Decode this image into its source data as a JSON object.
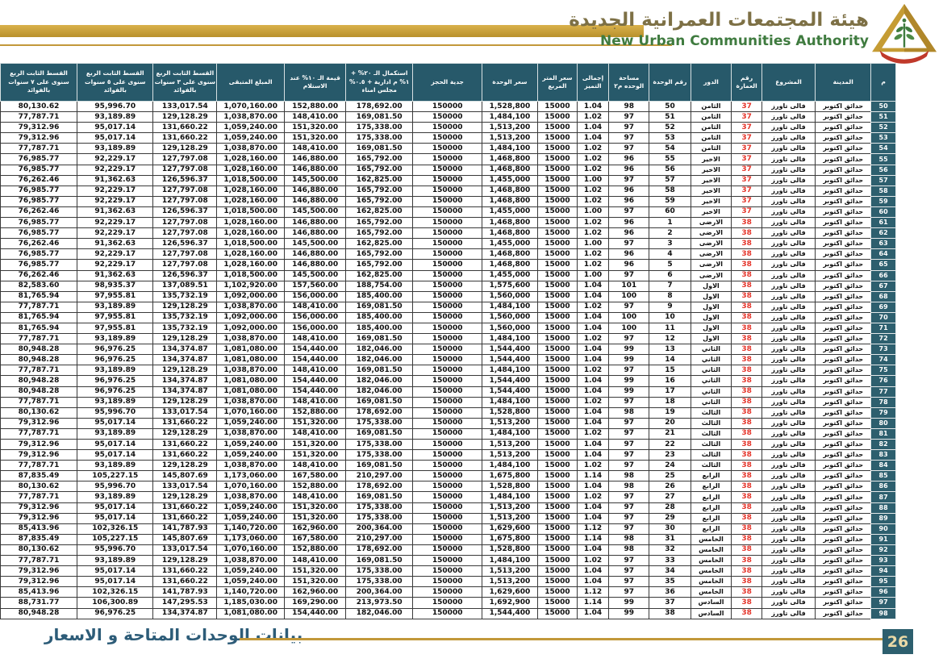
{
  "header": {
    "title_ar": "هيئة المجتمعات العمرانية الجديدة",
    "title_en": "New Urban Communities Authority",
    "logo_name": "nuca-logo"
  },
  "footer": {
    "caption": "بيانات الوحدات المتاحة و الاسعار",
    "page_number": "26"
  },
  "colors": {
    "gold_accent": "#C2983A",
    "header_teal": "#27596A",
    "serial_teal": "#2D5F6E",
    "building_red": "#E5352B",
    "footer_text": "#2D5C78",
    "page_number_text": "#EAD9A6",
    "title_green": "#3F7B3F",
    "title_gold": "#7D7045"
  },
  "table": {
    "columns": [
      {
        "key": "serial",
        "label": "م"
      },
      {
        "key": "city",
        "label": "المدينة"
      },
      {
        "key": "project",
        "label": "المشروع"
      },
      {
        "key": "building",
        "label": "رقم العمارة"
      },
      {
        "key": "floor",
        "label": "الدور"
      },
      {
        "key": "unit_number",
        "label": "رقم الوحدة"
      },
      {
        "key": "area",
        "label": "مساحة الوحده م٢"
      },
      {
        "key": "premium_total",
        "label": "إجمالى التميز"
      },
      {
        "key": "sqm_price",
        "label": "سعر المتر المربع"
      },
      {
        "key": "unit_price",
        "label": "سعر الوحدة"
      },
      {
        "key": "booking_deposit",
        "label": "جدية الحجز"
      },
      {
        "key": "completion_20",
        "label": "استكمال الـ ٢٠% + ١% م ادارية + ٠.٥% مجلس امناء"
      },
      {
        "key": "value_10_delivery",
        "label": "قيمة الـ ١٠% عند الاستلام"
      },
      {
        "key": "remaining",
        "label": "المبلغ المتبقى"
      },
      {
        "key": "inst_3y",
        "label": "القسط الثابت الربع سنوى على ٣ سنوات بالفوائد"
      },
      {
        "key": "inst_5y",
        "label": "القسط الثابت الربع سنوى على ٥ سنوات بالفوائد"
      },
      {
        "key": "inst_7y",
        "label": "القسط الثابت الربع سنوى على ٧ سنوات بالفوائد"
      }
    ],
    "rows": [
      [
        "50",
        "حدائق اكتوبر",
        "فالى تاورز",
        "37",
        "الثامن",
        "50",
        "98",
        "1.04",
        "15000",
        "1,528,800",
        "150000",
        "178,692.00",
        "152,880.00",
        "1,070,160.00",
        "133,017.54",
        "95,996.70",
        "80,130.62"
      ],
      [
        "51",
        "حدائق اكتوبر",
        "فالى تاورز",
        "37",
        "الثامن",
        "51",
        "97",
        "1.02",
        "15000",
        "1,484,100",
        "150000",
        "169,081.50",
        "148,410.00",
        "1,038,870.00",
        "129,128.29",
        "93,189.89",
        "77,787.71"
      ],
      [
        "52",
        "حدائق اكتوبر",
        "فالى تاورز",
        "37",
        "الثامن",
        "52",
        "97",
        "1.04",
        "15000",
        "1,513,200",
        "150000",
        "175,338.00",
        "151,320.00",
        "1,059,240.00",
        "131,660.22",
        "95,017.14",
        "79,312.96"
      ],
      [
        "53",
        "حدائق اكتوبر",
        "فالى تاورز",
        "37",
        "الثامن",
        "53",
        "97",
        "1.04",
        "15000",
        "1,513,200",
        "150000",
        "175,338.00",
        "151,320.00",
        "1,059,240.00",
        "131,660.22",
        "95,017.14",
        "79,312.96"
      ],
      [
        "54",
        "حدائق اكتوبر",
        "فالى تاورز",
        "37",
        "الثامن",
        "54",
        "97",
        "1.02",
        "15000",
        "1,484,100",
        "150000",
        "169,081.50",
        "148,410.00",
        "1,038,870.00",
        "129,128.29",
        "93,189.89",
        "77,787.71"
      ],
      [
        "55",
        "حدائق اكتوبر",
        "فالى تاورز",
        "37",
        "الاخير",
        "55",
        "96",
        "1.02",
        "15000",
        "1,468,800",
        "150000",
        "165,792.00",
        "146,880.00",
        "1,028,160.00",
        "127,797.08",
        "92,229.17",
        "76,985.77"
      ],
      [
        "56",
        "حدائق اكتوبر",
        "فالى تاورز",
        "37",
        "الاخير",
        "56",
        "96",
        "1.02",
        "15000",
        "1,468,800",
        "150000",
        "165,792.00",
        "146,880.00",
        "1,028,160.00",
        "127,797.08",
        "92,229.17",
        "76,985.77"
      ],
      [
        "57",
        "حدائق اكتوبر",
        "فالى تاورز",
        "37",
        "الاخير",
        "57",
        "97",
        "1.00",
        "15000",
        "1,455,000",
        "150000",
        "162,825.00",
        "145,500.00",
        "1,018,500.00",
        "126,596.37",
        "91,362.63",
        "76,262.46"
      ],
      [
        "58",
        "حدائق اكتوبر",
        "فالى تاورز",
        "37",
        "الاخير",
        "58",
        "96",
        "1.02",
        "15000",
        "1,468,800",
        "150000",
        "165,792.00",
        "146,880.00",
        "1,028,160.00",
        "127,797.08",
        "92,229.17",
        "76,985.77"
      ],
      [
        "59",
        "حدائق اكتوبر",
        "فالى تاورز",
        "37",
        "الاخير",
        "59",
        "96",
        "1.02",
        "15000",
        "1,468,800",
        "150000",
        "165,792.00",
        "146,880.00",
        "1,028,160.00",
        "127,797.08",
        "92,229.17",
        "76,985.77"
      ],
      [
        "60",
        "حدائق اكتوبر",
        "فالى تاورز",
        "37",
        "الاخير",
        "60",
        "97",
        "1.00",
        "15000",
        "1,455,000",
        "150000",
        "162,825.00",
        "145,500.00",
        "1,018,500.00",
        "126,596.37",
        "91,362.63",
        "76,262.46"
      ],
      [
        "61",
        "حدائق اكتوبر",
        "فالى تاورز",
        "38",
        "الارضى",
        "1",
        "96",
        "1.02",
        "15000",
        "1,468,800",
        "150000",
        "165,792.00",
        "146,880.00",
        "1,028,160.00",
        "127,797.08",
        "92,229.17",
        "76,985.77"
      ],
      [
        "62",
        "حدائق اكتوبر",
        "فالى تاورز",
        "38",
        "الارضى",
        "2",
        "96",
        "1.02",
        "15000",
        "1,468,800",
        "150000",
        "165,792.00",
        "146,880.00",
        "1,028,160.00",
        "127,797.08",
        "92,229.17",
        "76,985.77"
      ],
      [
        "63",
        "حدائق اكتوبر",
        "فالى تاورز",
        "38",
        "الارضى",
        "3",
        "97",
        "1.00",
        "15000",
        "1,455,000",
        "150000",
        "162,825.00",
        "145,500.00",
        "1,018,500.00",
        "126,596.37",
        "91,362.63",
        "76,262.46"
      ],
      [
        "64",
        "حدائق اكتوبر",
        "فالى تاورز",
        "38",
        "الارضى",
        "4",
        "96",
        "1.02",
        "15000",
        "1,468,800",
        "150000",
        "165,792.00",
        "146,880.00",
        "1,028,160.00",
        "127,797.08",
        "92,229.17",
        "76,985.77"
      ],
      [
        "65",
        "حدائق اكتوبر",
        "فالى تاورز",
        "38",
        "الارضى",
        "5",
        "96",
        "1.02",
        "15000",
        "1,468,800",
        "150000",
        "165,792.00",
        "146,880.00",
        "1,028,160.00",
        "127,797.08",
        "92,229.17",
        "76,985.77"
      ],
      [
        "66",
        "حدائق اكتوبر",
        "فالى تاورز",
        "38",
        "الارضى",
        "6",
        "97",
        "1.00",
        "15000",
        "1,455,000",
        "150000",
        "162,825.00",
        "145,500.00",
        "1,018,500.00",
        "126,596.37",
        "91,362.63",
        "76,262.46"
      ],
      [
        "67",
        "حدائق اكتوبر",
        "فالى تاورز",
        "38",
        "الاول",
        "7",
        "101",
        "1.04",
        "15000",
        "1,575,600",
        "150000",
        "188,754.00",
        "157,560.00",
        "1,102,920.00",
        "137,089.51",
        "98,935.37",
        "82,583.60"
      ],
      [
        "68",
        "حدائق اكتوبر",
        "فالى تاورز",
        "38",
        "الاول",
        "8",
        "100",
        "1.04",
        "15000",
        "1,560,000",
        "150000",
        "185,400.00",
        "156,000.00",
        "1,092,000.00",
        "135,732.19",
        "97,955.81",
        "81,765.94"
      ],
      [
        "69",
        "حدائق اكتوبر",
        "فالى تاورز",
        "38",
        "الاول",
        "9",
        "97",
        "1.02",
        "15000",
        "1,484,100",
        "150000",
        "169,081.50",
        "148,410.00",
        "1,038,870.00",
        "129,128.29",
        "93,189.89",
        "77,787.71"
      ],
      [
        "70",
        "حدائق اكتوبر",
        "فالى تاورز",
        "38",
        "الاول",
        "10",
        "100",
        "1.04",
        "15000",
        "1,560,000",
        "150000",
        "185,400.00",
        "156,000.00",
        "1,092,000.00",
        "135,732.19",
        "97,955.81",
        "81,765.94"
      ],
      [
        "71",
        "حدائق اكتوبر",
        "فالى تاورز",
        "38",
        "الاول",
        "11",
        "100",
        "1.04",
        "15000",
        "1,560,000",
        "150000",
        "185,400.00",
        "156,000.00",
        "1,092,000.00",
        "135,732.19",
        "97,955.81",
        "81,765.94"
      ],
      [
        "72",
        "حدائق اكتوبر",
        "فالى تاورز",
        "38",
        "الاول",
        "12",
        "97",
        "1.02",
        "15000",
        "1,484,100",
        "150000",
        "169,081.50",
        "148,410.00",
        "1,038,870.00",
        "129,128.29",
        "93,189.89",
        "77,787.71"
      ],
      [
        "73",
        "حدائق اكتوبر",
        "فالى تاورز",
        "38",
        "الثاني",
        "13",
        "99",
        "1.04",
        "15000",
        "1,544,400",
        "150000",
        "182,046.00",
        "154,440.00",
        "1,081,080.00",
        "134,374.87",
        "96,976.25",
        "80,948.28"
      ],
      [
        "74",
        "حدائق اكتوبر",
        "فالى تاورز",
        "38",
        "الثاني",
        "14",
        "99",
        "1.04",
        "15000",
        "1,544,400",
        "150000",
        "182,046.00",
        "154,440.00",
        "1,081,080.00",
        "134,374.87",
        "96,976.25",
        "80,948.28"
      ],
      [
        "75",
        "حدائق اكتوبر",
        "فالى تاورز",
        "38",
        "الثاني",
        "15",
        "97",
        "1.02",
        "15000",
        "1,484,100",
        "150000",
        "169,081.50",
        "148,410.00",
        "1,038,870.00",
        "129,128.29",
        "93,189.89",
        "77,787.71"
      ],
      [
        "76",
        "حدائق اكتوبر",
        "فالى تاورز",
        "38",
        "الثاني",
        "16",
        "99",
        "1.04",
        "15000",
        "1,544,400",
        "150000",
        "182,046.00",
        "154,440.00",
        "1,081,080.00",
        "134,374.87",
        "96,976.25",
        "80,948.28"
      ],
      [
        "77",
        "حدائق اكتوبر",
        "فالى تاورز",
        "38",
        "الثاني",
        "17",
        "99",
        "1.04",
        "15000",
        "1,544,400",
        "150000",
        "182,046.00",
        "154,440.00",
        "1,081,080.00",
        "134,374.87",
        "96,976.25",
        "80,948.28"
      ],
      [
        "78",
        "حدائق اكتوبر",
        "فالى تاورز",
        "38",
        "الثاني",
        "18",
        "97",
        "1.02",
        "15000",
        "1,484,100",
        "150000",
        "169,081.50",
        "148,410.00",
        "1,038,870.00",
        "129,128.29",
        "93,189.89",
        "77,787.71"
      ],
      [
        "79",
        "حدائق اكتوبر",
        "فالى تاورز",
        "38",
        "الثالث",
        "19",
        "98",
        "1.04",
        "15000",
        "1,528,800",
        "150000",
        "178,692.00",
        "152,880.00",
        "1,070,160.00",
        "133,017.54",
        "95,996.70",
        "80,130.62"
      ],
      [
        "80",
        "حدائق اكتوبر",
        "فالى تاورز",
        "38",
        "الثالث",
        "20",
        "97",
        "1.04",
        "15000",
        "1,513,200",
        "150000",
        "175,338.00",
        "151,320.00",
        "1,059,240.00",
        "131,660.22",
        "95,017.14",
        "79,312.96"
      ],
      [
        "81",
        "حدائق اكتوبر",
        "فالى تاورز",
        "38",
        "الثالث",
        "21",
        "97",
        "1.02",
        "15000",
        "1,484,100",
        "150000",
        "169,081.50",
        "148,410.00",
        "1,038,870.00",
        "129,128.29",
        "93,189.89",
        "77,787.71"
      ],
      [
        "82",
        "حدائق اكتوبر",
        "فالى تاورز",
        "38",
        "الثالث",
        "22",
        "97",
        "1.04",
        "15000",
        "1,513,200",
        "150000",
        "175,338.00",
        "151,320.00",
        "1,059,240.00",
        "131,660.22",
        "95,017.14",
        "79,312.96"
      ],
      [
        "83",
        "حدائق اكتوبر",
        "فالى تاورز",
        "38",
        "الثالث",
        "23",
        "97",
        "1.04",
        "15000",
        "1,513,200",
        "150000",
        "175,338.00",
        "151,320.00",
        "1,059,240.00",
        "131,660.22",
        "95,017.14",
        "79,312.96"
      ],
      [
        "84",
        "حدائق اكتوبر",
        "فالى تاورز",
        "38",
        "الثالث",
        "24",
        "97",
        "1.02",
        "15000",
        "1,484,100",
        "150000",
        "169,081.50",
        "148,410.00",
        "1,038,870.00",
        "129,128.29",
        "93,189.89",
        "77,787.71"
      ],
      [
        "85",
        "حدائق اكتوبر",
        "فالى تاورز",
        "38",
        "الرابع",
        "25",
        "98",
        "1.14",
        "15000",
        "1,675,800",
        "150000",
        "210,297.00",
        "167,580.00",
        "1,173,060.00",
        "145,807.69",
        "105,227.15",
        "87,835.49"
      ],
      [
        "86",
        "حدائق اكتوبر",
        "فالى تاورز",
        "38",
        "الرابع",
        "26",
        "98",
        "1.04",
        "15000",
        "1,528,800",
        "150000",
        "178,692.00",
        "152,880.00",
        "1,070,160.00",
        "133,017.54",
        "95,996.70",
        "80,130.62"
      ],
      [
        "87",
        "حدائق اكتوبر",
        "فالى تاورز",
        "38",
        "الرابع",
        "27",
        "97",
        "1.02",
        "15000",
        "1,484,100",
        "150000",
        "169,081.50",
        "148,410.00",
        "1,038,870.00",
        "129,128.29",
        "93,189.89",
        "77,787.71"
      ],
      [
        "88",
        "حدائق اكتوبر",
        "فالى تاورز",
        "38",
        "الرابع",
        "28",
        "97",
        "1.04",
        "15000",
        "1,513,200",
        "150000",
        "175,338.00",
        "151,320.00",
        "1,059,240.00",
        "131,660.22",
        "95,017.14",
        "79,312.96"
      ],
      [
        "89",
        "حدائق اكتوبر",
        "فالى تاورز",
        "38",
        "الرابع",
        "29",
        "97",
        "1.04",
        "15000",
        "1,513,200",
        "150000",
        "175,338.00",
        "151,320.00",
        "1,059,240.00",
        "131,660.22",
        "95,017.14",
        "79,312.96"
      ],
      [
        "90",
        "حدائق اكتوبر",
        "فالى تاورز",
        "38",
        "الرابع",
        "30",
        "97",
        "1.12",
        "15000",
        "1,629,600",
        "150000",
        "200,364.00",
        "162,960.00",
        "1,140,720.00",
        "141,787.93",
        "102,326.15",
        "85,413.96"
      ],
      [
        "91",
        "حدائق اكتوبر",
        "فالى تاورز",
        "38",
        "الخامس",
        "31",
        "98",
        "1.14",
        "15000",
        "1,675,800",
        "150000",
        "210,297.00",
        "167,580.00",
        "1,173,060.00",
        "145,807.69",
        "105,227.15",
        "87,835.49"
      ],
      [
        "92",
        "حدائق اكتوبر",
        "فالى تاورز",
        "38",
        "الخامس",
        "32",
        "98",
        "1.04",
        "15000",
        "1,528,800",
        "150000",
        "178,692.00",
        "152,880.00",
        "1,070,160.00",
        "133,017.54",
        "95,996.70",
        "80,130.62"
      ],
      [
        "93",
        "حدائق اكتوبر",
        "فالى تاورز",
        "38",
        "الخامس",
        "33",
        "97",
        "1.02",
        "15000",
        "1,484,100",
        "150000",
        "169,081.50",
        "148,410.00",
        "1,038,870.00",
        "129,128.29",
        "93,189.89",
        "77,787.71"
      ],
      [
        "94",
        "حدائق اكتوبر",
        "فالى تاورز",
        "38",
        "الخامس",
        "34",
        "97",
        "1.04",
        "15000",
        "1,513,200",
        "150000",
        "175,338.00",
        "151,320.00",
        "1,059,240.00",
        "131,660.22",
        "95,017.14",
        "79,312.96"
      ],
      [
        "95",
        "حدائق اكتوبر",
        "فالى تاورز",
        "38",
        "الخامس",
        "35",
        "97",
        "1.04",
        "15000",
        "1,513,200",
        "150000",
        "175,338.00",
        "151,320.00",
        "1,059,240.00",
        "131,660.22",
        "95,017.14",
        "79,312.96"
      ],
      [
        "96",
        "حدائق اكتوبر",
        "فالى تاورز",
        "38",
        "الخامس",
        "36",
        "97",
        "1.12",
        "15000",
        "1,629,600",
        "150000",
        "200,364.00",
        "162,960.00",
        "1,140,720.00",
        "141,787.93",
        "102,326.15",
        "85,413.96"
      ],
      [
        "97",
        "حدائق اكتوبر",
        "فالى تاورز",
        "38",
        "السادس",
        "37",
        "99",
        "1.14",
        "15000",
        "1,692,900",
        "150000",
        "213,973.50",
        "169,290.00",
        "1,185,030.00",
        "147,295.53",
        "106,300.89",
        "88,731.77"
      ],
      [
        "98",
        "حدائق اكتوبر",
        "فالى تاورز",
        "38",
        "السادس",
        "38",
        "99",
        "1.04",
        "15000",
        "1,544,400",
        "150000",
        "182,046.00",
        "154,440.00",
        "1,081,080.00",
        "134,374.87",
        "96,976.25",
        "80,948.28"
      ]
    ]
  }
}
